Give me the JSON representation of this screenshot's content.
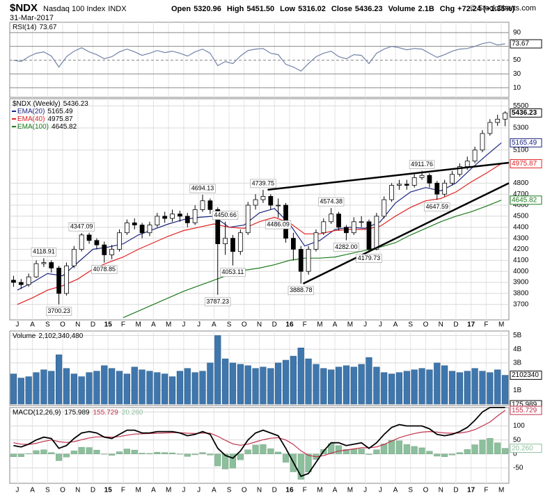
{
  "header": {
    "symbol": "$NDX",
    "name": "Nasdaq 100 Index",
    "exchange": "INDX",
    "date": "31-Mar-2017",
    "quote": [
      {
        "name": "Open",
        "value": "5320.96"
      },
      {
        "name": "High",
        "value": "5451.50"
      },
      {
        "name": "Low",
        "value": "5316.02"
      },
      {
        "name": "Close",
        "value": "5436.23"
      },
      {
        "name": "Volume",
        "value": "2.1B"
      },
      {
        "name": "Chg",
        "value": "+72.24 (+1.35%)"
      }
    ],
    "credit": "© StockCharts.com"
  },
  "months": [
    "J",
    "A",
    "S",
    "O",
    "N",
    "D",
    "15",
    "F",
    "M",
    "A",
    "M",
    "J",
    "J",
    "A",
    "S",
    "O",
    "N",
    "D",
    "16",
    "F",
    "M",
    "A",
    "M",
    "J",
    "J",
    "A",
    "S",
    "O",
    "N",
    "D",
    "17",
    "F",
    "M"
  ],
  "chart_data": [
    {
      "type": "line",
      "name": "RSI(14)",
      "last": 73.67,
      "color": "#7282a8",
      "values": [
        50,
        48,
        55,
        60,
        62,
        56,
        40,
        55,
        63,
        68,
        62,
        58,
        52,
        55,
        62,
        66,
        62,
        57,
        60,
        64,
        61,
        63,
        60,
        56,
        62,
        66,
        60,
        42,
        48,
        45,
        56,
        64,
        66,
        67,
        60,
        58,
        44,
        40,
        34,
        45,
        55,
        60,
        63,
        55,
        52,
        58,
        57,
        45,
        60,
        66,
        70,
        68,
        65,
        67,
        66,
        60,
        54,
        58,
        63,
        66,
        67,
        70,
        74,
        76,
        72,
        73.67
      ],
      "ylim": [
        -4,
        105
      ],
      "yticks": [
        90,
        70,
        50,
        30,
        10
      ],
      "grid": true
    },
    {
      "type": "candlestick",
      "name": "$NDX (Weekly)",
      "last": 5436.23,
      "up_fill": "#ffffff",
      "down_fill": "#000000",
      "open": [
        3920,
        3900,
        3880,
        3950,
        4070,
        4080,
        4030,
        3800,
        4050,
        4200,
        4330,
        4280,
        4240,
        4150,
        4200,
        4350,
        4440,
        4420,
        4350,
        4420,
        4500,
        4480,
        4520,
        4500,
        4440,
        4560,
        4640,
        4560,
        4250,
        4300,
        4180,
        4350,
        4600,
        4650,
        4680,
        4600,
        4600,
        4300,
        4200,
        4000,
        4200,
        4350,
        4450,
        4520,
        4400,
        4350,
        4450,
        4450,
        4200,
        4500,
        4650,
        4780,
        4790,
        4780,
        4850,
        4870,
        4800,
        4700,
        4800,
        4880,
        4950,
        5000,
        5100,
        5250,
        5350,
        5380
      ],
      "high": [
        3960,
        3930,
        3980,
        4100,
        4118.91,
        4100,
        4050,
        4080,
        4230,
        4347.09,
        4350,
        4300,
        4270,
        4240,
        4380,
        4470,
        4480,
        4440,
        4450,
        4530,
        4540,
        4560,
        4550,
        4530,
        4600,
        4694.13,
        4660,
        4580,
        4450.66,
        4330,
        4380,
        4630,
        4700,
        4739.75,
        4700,
        4660,
        4620,
        4350,
        4230,
        4230,
        4380,
        4480,
        4574.38,
        4540,
        4420,
        4490,
        4500,
        4470,
        4530,
        4680,
        4800,
        4830,
        4830,
        4880,
        4911.76,
        4890,
        4820,
        4830,
        4910,
        4980,
        5040,
        5130,
        5280,
        5380,
        5420,
        5451.5
      ],
      "low": [
        3860,
        3840,
        3860,
        3940,
        4040,
        3990,
        3700.23,
        3780,
        4030,
        4180,
        4250,
        4200,
        4078.85,
        4110,
        4180,
        4330,
        4380,
        4300,
        4320,
        4400,
        4440,
        4450,
        4450,
        4400,
        4420,
        4540,
        4520,
        3787.23,
        4150,
        4053.11,
        4150,
        4330,
        4560,
        4620,
        4560,
        4486.09,
        4260,
        4100,
        3888.78,
        3970,
        4180,
        4330,
        4430,
        4370,
        4282,
        4330,
        4400,
        4179.73,
        4190,
        4480,
        4630,
        4740,
        4740,
        4760,
        4830,
        4760,
        4647.59,
        4680,
        4780,
        4860,
        4920,
        4980,
        5080,
        5230,
        5320,
        5316.02
      ],
      "close": [
        3900,
        3880,
        3950,
        4070,
        4080,
        4030,
        3800,
        4050,
        4200,
        4330,
        4280,
        4240,
        4150,
        4200,
        4350,
        4440,
        4420,
        4350,
        4420,
        4500,
        4480,
        4520,
        4500,
        4440,
        4560,
        4640,
        4560,
        4250,
        4300,
        4180,
        4350,
        4600,
        4650,
        4680,
        4600,
        4600,
        4300,
        4200,
        4000,
        4200,
        4350,
        4450,
        4520,
        4400,
        4350,
        4450,
        4450,
        4200,
        4500,
        4650,
        4780,
        4790,
        4780,
        4850,
        4870,
        4800,
        4700,
        4800,
        4880,
        4950,
        5000,
        5100,
        5250,
        5350,
        5380,
        5436.23
      ],
      "emas": [
        {
          "name": "EMA(20)",
          "color": "#1a237e",
          "last": 5165.49,
          "values": [
            3830,
            3900,
            3980,
            3960,
            4080,
            4200,
            4220,
            4250,
            4330,
            4380,
            4430,
            4470,
            4490,
            4500,
            4400,
            4420,
            4530,
            4570,
            4430,
            4230,
            4280,
            4380,
            4400,
            4390,
            4450,
            4620,
            4720,
            4760,
            4730,
            4800,
            4930,
            5050,
            5165.49
          ]
        },
        {
          "name": "EMA(40)",
          "color": "#e02020",
          "last": 4975.87,
          "values": [
            3700,
            3760,
            3830,
            3870,
            3930,
            4020,
            4080,
            4130,
            4200,
            4260,
            4320,
            4370,
            4400,
            4430,
            4400,
            4390,
            4450,
            4490,
            4440,
            4340,
            4340,
            4370,
            4380,
            4380,
            4410,
            4500,
            4580,
            4640,
            4660,
            4720,
            4810,
            4890,
            4975.87
          ]
        },
        {
          "name": "EMA(100)",
          "color": "#1e7a1e",
          "last": 4645.82,
          "values": [
            null,
            null,
            null,
            null,
            null,
            null,
            null,
            3580,
            3640,
            3700,
            3760,
            3820,
            3870,
            3920,
            3970,
            4010,
            4030,
            4060,
            4100,
            4120,
            4120,
            4130,
            4160,
            4190,
            4220,
            4260,
            4330,
            4390,
            4450,
            4500,
            4540,
            4590,
            4645.82
          ]
        }
      ],
      "annotations": [
        {
          "index": 4,
          "value": 4118.91,
          "side": "above"
        },
        {
          "index": 9,
          "value": 4347.09,
          "side": "above"
        },
        {
          "index": 12,
          "value": 4078.85,
          "side": "below"
        },
        {
          "index": 6,
          "value": 3700.23,
          "side": "below"
        },
        {
          "index": 25,
          "value": 4694.13,
          "side": "above"
        },
        {
          "index": 28,
          "value": 4450.66,
          "side": "above"
        },
        {
          "index": 29,
          "value": 4053.11,
          "side": "below"
        },
        {
          "index": 27,
          "value": 3787.23,
          "side": "below"
        },
        {
          "index": 33,
          "value": 4739.75,
          "side": "above"
        },
        {
          "index": 35,
          "value": 4486.09,
          "side": "below"
        },
        {
          "index": 42,
          "value": 4574.38,
          "side": "above"
        },
        {
          "index": 44,
          "value": 4282,
          "label": "4282.00",
          "side": "below"
        },
        {
          "index": 38,
          "value": 3888.78,
          "side": "below"
        },
        {
          "index": 47,
          "value": 4179.73,
          "side": "below"
        },
        {
          "index": 54,
          "value": 4911.76,
          "side": "above"
        },
        {
          "index": 56,
          "value": 4647.59,
          "side": "below"
        }
      ],
      "trendlines": [
        {
          "from": [
            33.6,
            4740
          ],
          "to": [
            65.5,
            4985
          ]
        },
        {
          "from": [
            38.3,
            3888.78
          ],
          "to": [
            65.5,
            4800
          ]
        }
      ],
      "ylim": [
        3560,
        5565
      ],
      "yticks": [
        5500,
        5300,
        5100,
        4800,
        4700,
        4600,
        4500,
        4400,
        4300,
        4200,
        4100,
        4000,
        3900,
        3800,
        3700
      ],
      "grid": true
    },
    {
      "type": "bar",
      "name": "Volume",
      "last": 2.10234048,
      "last_label": "2,102,340,480",
      "tag_label": "2102340",
      "color": "#3f77ad",
      "values": [
        2.2,
        1.9,
        2.0,
        2.3,
        2.5,
        2.4,
        3.6,
        2.6,
        2.2,
        2.0,
        2.3,
        2.4,
        2.8,
        2.6,
        2.4,
        2.2,
        2.7,
        2.5,
        2.4,
        2.3,
        2.2,
        2.0,
        2.4,
        2.6,
        2.3,
        2.4,
        3.0,
        5.0,
        3.3,
        3.0,
        2.9,
        2.8,
        2.6,
        2.7,
        2.6,
        3.0,
        3.2,
        3.5,
        4.1,
        3.3,
        2.9,
        2.6,
        2.5,
        2.7,
        2.8,
        2.7,
        2.9,
        3.4,
        2.7,
        2.3,
        2.2,
        2.3,
        2.4,
        2.5,
        2.6,
        2.5,
        3.0,
        2.8,
        2.4,
        2.3,
        2.4,
        2.6,
        2.4,
        2.3,
        2.5,
        2.10234048
      ],
      "ylim": [
        -0.1,
        5.33
      ],
      "yticks": [
        {
          "value": 5,
          "label": "5B"
        },
        {
          "value": 4,
          "label": "4B"
        },
        {
          "value": 3,
          "label": "3B"
        },
        {
          "value": 1,
          "label": "1B"
        }
      ],
      "grid": true
    },
    {
      "type": "macd",
      "name": "MACD(12,26,9)",
      "series": [
        {
          "name": "MACD",
          "color": "#000000",
          "last": 175.989,
          "values": [
            30,
            25,
            35,
            50,
            60,
            55,
            20,
            30,
            55,
            75,
            80,
            75,
            60,
            55,
            70,
            85,
            85,
            75,
            75,
            80,
            80,
            80,
            75,
            65,
            70,
            80,
            70,
            20,
            -5,
            -15,
            10,
            50,
            75,
            85,
            75,
            65,
            20,
            -30,
            -80,
            -70,
            -30,
            10,
            40,
            40,
            30,
            35,
            40,
            20,
            40,
            70,
            95,
            105,
            100,
            100,
            100,
            90,
            70,
            65,
            70,
            80,
            95,
            120,
            150,
            170,
            176,
            175.989
          ]
        },
        {
          "name": "Signal",
          "color": "#c0304a",
          "last": 155.729,
          "values": [
            40,
            35,
            34,
            38,
            45,
            50,
            44,
            41,
            44,
            51,
            57,
            61,
            61,
            60,
            62,
            67,
            71,
            72,
            73,
            74,
            75,
            76,
            76,
            74,
            73,
            75,
            74,
            63,
            49,
            36,
            31,
            35,
            43,
            51,
            56,
            58,
            50,
            34,
            11,
            -5,
            -10,
            -6,
            3,
            10,
            14,
            18,
            22,
            22,
            25,
            34,
            46,
            58,
            66,
            73,
            78,
            80,
            78,
            75,
            74,
            75,
            79,
            87,
            100,
            114,
            136,
            155.729
          ]
        },
        {
          "name": "Histogram",
          "color": "#8cbf9c",
          "last": 20.26,
          "last_label": "20.260",
          "values": [
            -10,
            -10,
            1,
            12,
            15,
            5,
            -24,
            -11,
            11,
            24,
            23,
            14,
            -1,
            -5,
            8,
            18,
            14,
            3,
            2,
            6,
            5,
            4,
            -1,
            -9,
            -3,
            5,
            -4,
            -43,
            -54,
            -51,
            -21,
            15,
            32,
            34,
            19,
            7,
            -30,
            -64,
            -91,
            -65,
            -20,
            16,
            37,
            30,
            16,
            17,
            18,
            -2,
            15,
            36,
            49,
            47,
            34,
            27,
            22,
            10,
            -8,
            -10,
            -4,
            5,
            16,
            33,
            50,
            56,
            40,
            20.26
          ]
        }
      ],
      "ylim": [
        -105,
        166
      ],
      "yticks": [
        150,
        100,
        50,
        0,
        -50
      ],
      "grid": true
    }
  ]
}
